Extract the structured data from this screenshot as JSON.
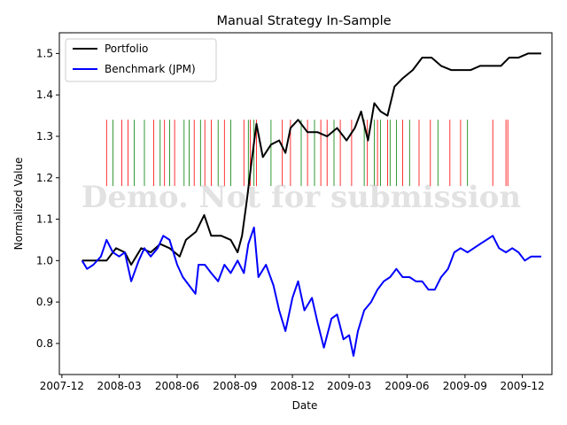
{
  "chart_data": {
    "type": "line",
    "title": "Manual Strategy In-Sample",
    "xlabel": "Date",
    "ylabel": "Normalized Value",
    "xlim": [
      "2007-11-27",
      "2010-01-17"
    ],
    "ylim": [
      0.725,
      1.55
    ],
    "x_ticks": [
      "2007-12",
      "2008-03",
      "2008-06",
      "2008-09",
      "2008-12",
      "2009-03",
      "2009-06",
      "2009-09",
      "2009-12"
    ],
    "y_ticks": [
      0.8,
      0.9,
      1.0,
      1.1,
      1.2,
      1.3,
      1.4,
      1.5
    ],
    "legend": {
      "placement": "upper-left"
    },
    "watermark": "Demo. Not for submission",
    "series": [
      {
        "name": "Portfolio",
        "color": "#000000",
        "points": [
          [
            "2008-01-02",
            1.0
          ],
          [
            "2008-01-20",
            1.0
          ],
          [
            "2008-02-10",
            1.0
          ],
          [
            "2008-02-25",
            1.03
          ],
          [
            "2008-03-10",
            1.02
          ],
          [
            "2008-03-20",
            0.99
          ],
          [
            "2008-04-05",
            1.03
          ],
          [
            "2008-04-20",
            1.02
          ],
          [
            "2008-05-05",
            1.04
          ],
          [
            "2008-05-20",
            1.03
          ],
          [
            "2008-06-05",
            1.01
          ],
          [
            "2008-06-15",
            1.05
          ],
          [
            "2008-07-01",
            1.07
          ],
          [
            "2008-07-14",
            1.11
          ],
          [
            "2008-07-25",
            1.06
          ],
          [
            "2008-08-10",
            1.06
          ],
          [
            "2008-08-25",
            1.05
          ],
          [
            "2008-09-05",
            1.02
          ],
          [
            "2008-09-12",
            1.06
          ],
          [
            "2008-09-20",
            1.15
          ],
          [
            "2008-09-28",
            1.25
          ],
          [
            "2008-10-05",
            1.33
          ],
          [
            "2008-10-15",
            1.25
          ],
          [
            "2008-10-28",
            1.28
          ],
          [
            "2008-11-10",
            1.29
          ],
          [
            "2008-11-20",
            1.26
          ],
          [
            "2008-11-28",
            1.32
          ],
          [
            "2008-12-10",
            1.34
          ],
          [
            "2008-12-25",
            1.31
          ],
          [
            "2009-01-10",
            1.31
          ],
          [
            "2009-01-25",
            1.3
          ],
          [
            "2009-02-10",
            1.32
          ],
          [
            "2009-02-25",
            1.29
          ],
          [
            "2009-03-10",
            1.32
          ],
          [
            "2009-03-20",
            1.36
          ],
          [
            "2009-03-31",
            1.29
          ],
          [
            "2009-04-10",
            1.38
          ],
          [
            "2009-04-20",
            1.36
          ],
          [
            "2009-05-01",
            1.35
          ],
          [
            "2009-05-12",
            1.42
          ],
          [
            "2009-05-25",
            1.44
          ],
          [
            "2009-06-10",
            1.46
          ],
          [
            "2009-06-25",
            1.49
          ],
          [
            "2009-07-10",
            1.49
          ],
          [
            "2009-07-25",
            1.47
          ],
          [
            "2009-08-10",
            1.46
          ],
          [
            "2009-08-25",
            1.46
          ],
          [
            "2009-09-10",
            1.46
          ],
          [
            "2009-09-25",
            1.47
          ],
          [
            "2009-10-10",
            1.47
          ],
          [
            "2009-10-28",
            1.47
          ],
          [
            "2009-11-10",
            1.49
          ],
          [
            "2009-11-25",
            1.49
          ],
          [
            "2009-12-10",
            1.5
          ],
          [
            "2009-12-20",
            1.5
          ],
          [
            "2009-12-31",
            1.5
          ]
        ]
      },
      {
        "name": "Benchmark (JPM)",
        "color": "#0000ff",
        "points": [
          [
            "2008-01-02",
            1.0
          ],
          [
            "2008-01-10",
            0.98
          ],
          [
            "2008-01-20",
            0.99
          ],
          [
            "2008-02-01",
            1.01
          ],
          [
            "2008-02-10",
            1.05
          ],
          [
            "2008-02-20",
            1.02
          ],
          [
            "2008-03-01",
            1.01
          ],
          [
            "2008-03-10",
            1.02
          ],
          [
            "2008-03-20",
            0.95
          ],
          [
            "2008-04-01",
            1.0
          ],
          [
            "2008-04-10",
            1.03
          ],
          [
            "2008-04-20",
            1.01
          ],
          [
            "2008-05-01",
            1.03
          ],
          [
            "2008-05-10",
            1.06
          ],
          [
            "2008-05-20",
            1.05
          ],
          [
            "2008-06-01",
            0.99
          ],
          [
            "2008-06-10",
            0.96
          ],
          [
            "2008-06-20",
            0.94
          ],
          [
            "2008-06-30",
            0.92
          ],
          [
            "2008-07-05",
            0.99
          ],
          [
            "2008-07-15",
            0.99
          ],
          [
            "2008-07-25",
            0.97
          ],
          [
            "2008-08-05",
            0.95
          ],
          [
            "2008-08-15",
            0.99
          ],
          [
            "2008-08-25",
            0.97
          ],
          [
            "2008-09-05",
            1.0
          ],
          [
            "2008-09-15",
            0.97
          ],
          [
            "2008-09-22",
            1.04
          ],
          [
            "2008-10-01",
            1.08
          ],
          [
            "2008-10-08",
            0.96
          ],
          [
            "2008-10-20",
            0.99
          ],
          [
            "2008-11-01",
            0.94
          ],
          [
            "2008-11-10",
            0.88
          ],
          [
            "2008-11-20",
            0.83
          ],
          [
            "2008-12-01",
            0.91
          ],
          [
            "2008-12-10",
            0.95
          ],
          [
            "2008-12-20",
            0.88
          ],
          [
            "2009-01-01",
            0.91
          ],
          [
            "2009-01-10",
            0.85
          ],
          [
            "2009-01-20",
            0.79
          ],
          [
            "2009-02-01",
            0.86
          ],
          [
            "2009-02-10",
            0.87
          ],
          [
            "2009-02-20",
            0.81
          ],
          [
            "2009-03-01",
            0.82
          ],
          [
            "2009-03-08",
            0.77
          ],
          [
            "2009-03-15",
            0.83
          ],
          [
            "2009-03-25",
            0.88
          ],
          [
            "2009-04-05",
            0.9
          ],
          [
            "2009-04-15",
            0.93
          ],
          [
            "2009-04-25",
            0.95
          ],
          [
            "2009-05-05",
            0.96
          ],
          [
            "2009-05-15",
            0.98
          ],
          [
            "2009-05-25",
            0.96
          ],
          [
            "2009-06-05",
            0.96
          ],
          [
            "2009-06-15",
            0.95
          ],
          [
            "2009-06-25",
            0.95
          ],
          [
            "2009-07-05",
            0.93
          ],
          [
            "2009-07-15",
            0.93
          ],
          [
            "2009-07-25",
            0.96
          ],
          [
            "2009-08-05",
            0.98
          ],
          [
            "2009-08-15",
            1.02
          ],
          [
            "2009-08-25",
            1.03
          ],
          [
            "2009-09-05",
            1.02
          ],
          [
            "2009-09-15",
            1.03
          ],
          [
            "2009-09-25",
            1.04
          ],
          [
            "2009-10-05",
            1.05
          ],
          [
            "2009-10-15",
            1.06
          ],
          [
            "2009-10-25",
            1.03
          ],
          [
            "2009-11-05",
            1.02
          ],
          [
            "2009-11-15",
            1.03
          ],
          [
            "2009-11-25",
            1.02
          ],
          [
            "2009-12-05",
            1.0
          ],
          [
            "2009-12-15",
            1.01
          ],
          [
            "2009-12-25",
            1.01
          ],
          [
            "2009-12-31",
            1.01
          ]
        ]
      }
    ],
    "trade_markers": {
      "y_range": [
        1.18,
        1.34
      ],
      "long_color": "#008000",
      "short_color": "#ff0000",
      "long": [
        "2008-02-20",
        "2008-03-25",
        "2008-04-10",
        "2008-05-05",
        "2008-05-20",
        "2008-06-12",
        "2008-06-20",
        "2008-07-08",
        "2008-08-05",
        "2008-08-25",
        "2008-09-22",
        "2008-10-01",
        "2008-10-28",
        "2008-12-15",
        "2009-01-05",
        "2009-02-05",
        "2009-03-25",
        "2009-04-10",
        "2009-04-20",
        "2009-05-05",
        "2009-05-15",
        "2009-06-05",
        "2009-07-20",
        "2009-09-05"
      ],
      "short": [
        "2008-02-10",
        "2008-03-05",
        "2008-03-15",
        "2008-04-25",
        "2008-05-12",
        "2008-05-28",
        "2008-06-28",
        "2008-07-15",
        "2008-07-25",
        "2008-08-15",
        "2008-09-15",
        "2008-09-25",
        "2008-10-05",
        "2008-11-15",
        "2008-11-28",
        "2008-12-25",
        "2009-01-15",
        "2009-01-25",
        "2009-02-15",
        "2009-03-05",
        "2009-03-30",
        "2009-04-15",
        "2009-05-01",
        "2009-05-25",
        "2009-06-20",
        "2009-07-08",
        "2009-08-08",
        "2009-08-25",
        "2009-10-15",
        "2009-11-05",
        "2009-11-08"
      ]
    }
  }
}
